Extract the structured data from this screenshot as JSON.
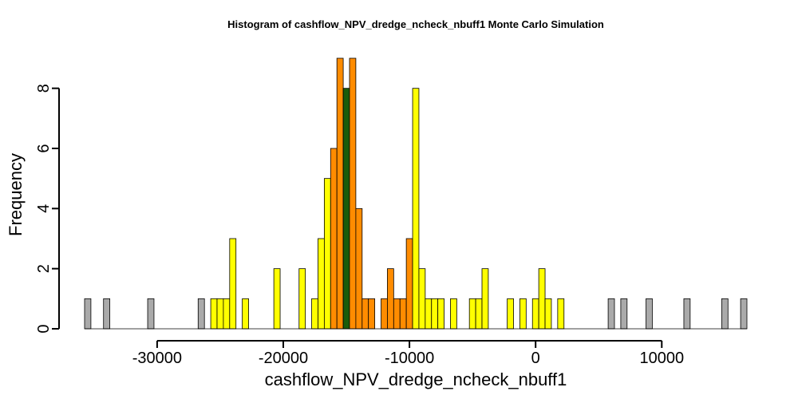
{
  "chart_data": {
    "type": "bar",
    "title": "Histogram of  cashflow_NPV_dredge_ncheck_nbuff1  Monte Carlo Simulation",
    "xlabel": "cashflow_NPV_dredge_ncheck_nbuff1",
    "ylabel": "Frequency",
    "xlim": [
      -35750,
      16750
    ],
    "ylim": [
      0,
      9
    ],
    "bin_width": 500,
    "x_ticks": [
      -30000,
      -20000,
      -10000,
      0,
      10000
    ],
    "x_tick_labels": [
      "-30000",
      "-20000",
      "-10000",
      "0",
      "10000"
    ],
    "y_ticks": [
      0,
      2,
      4,
      6,
      8
    ],
    "y_tick_labels": [
      "0",
      "2",
      "4",
      "6",
      "8"
    ],
    "grid": false,
    "legend": "none",
    "colors": {
      "outer": "#aaaaaa",
      "middle": "#ffff00",
      "inner": "#ff8c00",
      "center": "#1a5c0a"
    },
    "bins": [
      {
        "x0": -35750,
        "count": 1,
        "color": "outer"
      },
      {
        "x0": -34250,
        "count": 1,
        "color": "outer"
      },
      {
        "x0": -30750,
        "count": 1,
        "color": "outer"
      },
      {
        "x0": -26750,
        "count": 1,
        "color": "outer"
      },
      {
        "x0": -25750,
        "count": 1,
        "color": "middle"
      },
      {
        "x0": -25250,
        "count": 1,
        "color": "middle"
      },
      {
        "x0": -24750,
        "count": 1,
        "color": "middle"
      },
      {
        "x0": -24250,
        "count": 3,
        "color": "middle"
      },
      {
        "x0": -23250,
        "count": 1,
        "color": "middle"
      },
      {
        "x0": -20750,
        "count": 2,
        "color": "middle"
      },
      {
        "x0": -18750,
        "count": 2,
        "color": "middle"
      },
      {
        "x0": -17750,
        "count": 1,
        "color": "middle"
      },
      {
        "x0": -17250,
        "count": 3,
        "color": "middle"
      },
      {
        "x0": -16750,
        "count": 5,
        "color": "middle"
      },
      {
        "x0": -16250,
        "count": 6,
        "color": "inner"
      },
      {
        "x0": -15750,
        "count": 9,
        "color": "inner"
      },
      {
        "x0": -15250,
        "count": 8,
        "color": "center"
      },
      {
        "x0": -14750,
        "count": 9,
        "color": "inner"
      },
      {
        "x0": -14250,
        "count": 4,
        "color": "inner"
      },
      {
        "x0": -13750,
        "count": 1,
        "color": "inner"
      },
      {
        "x0": -13250,
        "count": 1,
        "color": "inner"
      },
      {
        "x0": -12250,
        "count": 1,
        "color": "inner"
      },
      {
        "x0": -11750,
        "count": 2,
        "color": "inner"
      },
      {
        "x0": -11250,
        "count": 1,
        "color": "inner"
      },
      {
        "x0": -10750,
        "count": 1,
        "color": "inner"
      },
      {
        "x0": -10250,
        "count": 3,
        "color": "inner"
      },
      {
        "x0": -9750,
        "count": 8,
        "color": "middle"
      },
      {
        "x0": -9250,
        "count": 2,
        "color": "middle"
      },
      {
        "x0": -8750,
        "count": 1,
        "color": "middle"
      },
      {
        "x0": -8250,
        "count": 1,
        "color": "middle"
      },
      {
        "x0": -7750,
        "count": 1,
        "color": "middle"
      },
      {
        "x0": -6750,
        "count": 1,
        "color": "middle"
      },
      {
        "x0": -5250,
        "count": 1,
        "color": "middle"
      },
      {
        "x0": -4750,
        "count": 1,
        "color": "middle"
      },
      {
        "x0": -4250,
        "count": 2,
        "color": "middle"
      },
      {
        "x0": -2250,
        "count": 1,
        "color": "middle"
      },
      {
        "x0": -1250,
        "count": 1,
        "color": "middle"
      },
      {
        "x0": -250,
        "count": 1,
        "color": "middle"
      },
      {
        "x0": 250,
        "count": 2,
        "color": "middle"
      },
      {
        "x0": 750,
        "count": 1,
        "color": "middle"
      },
      {
        "x0": 1750,
        "count": 1,
        "color": "middle"
      },
      {
        "x0": 5750,
        "count": 1,
        "color": "outer"
      },
      {
        "x0": 6750,
        "count": 1,
        "color": "outer"
      },
      {
        "x0": 8750,
        "count": 1,
        "color": "outer"
      },
      {
        "x0": 11750,
        "count": 1,
        "color": "outer"
      },
      {
        "x0": 14750,
        "count": 1,
        "color": "outer"
      },
      {
        "x0": 16250,
        "count": 1,
        "color": "outer"
      }
    ]
  }
}
